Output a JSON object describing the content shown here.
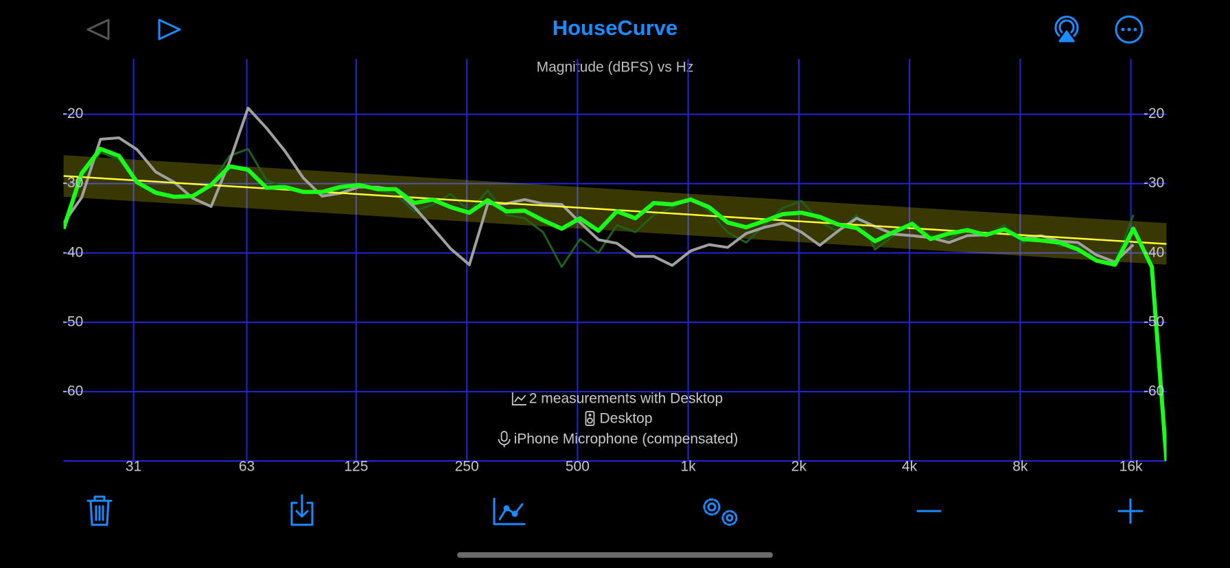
{
  "app": {
    "title": "HouseCurve"
  },
  "chart_data": {
    "type": "line",
    "title": "Magnitude (dBFS) vs Hz",
    "log_x": true,
    "grid": true,
    "xlim": [
      20,
      20000
    ],
    "ylim": [
      -70,
      -12
    ],
    "xticks": [
      31,
      63,
      125,
      250,
      500,
      {
        "value": 1000,
        "label": "1k"
      },
      {
        "value": 2000,
        "label": "2k"
      },
      {
        "value": 4000,
        "label": "4k"
      },
      {
        "value": 8000,
        "label": "8k"
      },
      {
        "value": 16000,
        "label": "16k"
      }
    ],
    "yticks": [
      -20,
      -30,
      -40,
      -50,
      -60
    ],
    "x": [
      20,
      22.4,
      25.2,
      28.3,
      31.7,
      35.6,
      40,
      44.9,
      50.4,
      56.6,
      63.5,
      71.3,
      80,
      89.8,
      101,
      113,
      127,
      143,
      160,
      180,
      202,
      226,
      254,
      285,
      320,
      359,
      403,
      453,
      508,
      570,
      640,
      718,
      806,
      905,
      1016,
      1140,
      1280,
      1437,
      1613,
      1810,
      2032,
      2281,
      2560,
      2874,
      3225,
      3620,
      4064,
      4561,
      5120,
      5747,
      6451,
      7241,
      8128,
      9123,
      10240,
      11494,
      12902,
      14482,
      16255,
      18246,
      20000
    ],
    "series": [
      {
        "color": "#1f5f1f",
        "width": 3,
        "values": [
          -36,
          -29,
          -25.5,
          -26.5,
          -30,
          -31.5,
          -32,
          -32,
          -30,
          -26,
          -25,
          -29.5,
          -30.5,
          -31,
          -31.5,
          -31,
          -30,
          -31,
          -31.5,
          -34,
          -33,
          -31.5,
          -34,
          -31,
          -34.5,
          -35,
          -37,
          -42,
          -38,
          -40,
          -36,
          -37,
          -34.5,
          -33.5,
          -32,
          -34,
          -37,
          -38.5,
          -36,
          -33.5,
          -32.5,
          -35.5,
          -37,
          -34.5,
          -39.5,
          -37.5,
          -35.5,
          -37.5,
          -38,
          -36.5,
          -37.5,
          -36,
          -38.5,
          -37.5,
          -39,
          -39,
          -41,
          -41.5,
          -34.5,
          null,
          null
        ]
      },
      {
        "color": "#a0a0a0",
        "width": 4,
        "values": [
          -35.7,
          -32,
          -23.6,
          -23.4,
          -25.1,
          -28.3,
          -29.8,
          -32.1,
          -33.3,
          -26.8,
          -19.1,
          -22,
          -25.3,
          -29.2,
          -31.8,
          -31.4,
          -30.5,
          -30.5,
          -30.9,
          -33.4,
          -36.4,
          -39.4,
          -41.7,
          -32.9,
          -32.9,
          -32.3,
          -32.9,
          -33,
          -35.6,
          -38.1,
          -38.6,
          -40.5,
          -40.5,
          -41.8,
          -39.7,
          -38.8,
          -39.2,
          -37.2,
          -36.3,
          -35.7,
          -37,
          -38.9,
          -36.8,
          -35,
          -36.2,
          -37.3,
          -37.5,
          -37.8,
          -38.5,
          -37.5,
          -37.4,
          -36.6,
          -37.9,
          -37.5,
          -38.3,
          -38.5,
          -40.3,
          -41.3,
          -38.8,
          null,
          null
        ]
      },
      {
        "color": "#1aff1a",
        "width": 6,
        "values": [
          -36.5,
          -28.5,
          -25,
          -26,
          -29.8,
          -31.3,
          -31.9,
          -31.8,
          -30.2,
          -27.5,
          -28,
          -30.6,
          -30.5,
          -31.2,
          -31.2,
          -30.5,
          -30.2,
          -30.8,
          -30.8,
          -32.8,
          -32.3,
          -33.4,
          -34.2,
          -32.4,
          -34,
          -33.9,
          -35.3,
          -36.5,
          -35,
          -36.8,
          -34,
          -35,
          -32.8,
          -33,
          -32.3,
          -33.4,
          -35.6,
          -36.3,
          -35.4,
          -34.4,
          -34.2,
          -34.8,
          -35.9,
          -36.4,
          -38.3,
          -37,
          -35.8,
          -38,
          -37.2,
          -36.7,
          -37.4,
          -36.6,
          -38,
          -38.2,
          -38.5,
          -39.5,
          -41.1,
          -41.7,
          -36.5,
          -42,
          -70
        ]
      }
    ],
    "target": {
      "x": [
        20,
        20000
      ],
      "values": [
        -28.9,
        -38.7
      ],
      "tolerance": 3,
      "color": "#ffff33",
      "band_color": "#ffff00",
      "band_opacity": 0.22
    },
    "grid_color": "#2424d8"
  },
  "info": {
    "measurements": "2 measurements with Desktop",
    "speaker": "Desktop",
    "microphone": "iPhone Microphone (compensated)"
  }
}
